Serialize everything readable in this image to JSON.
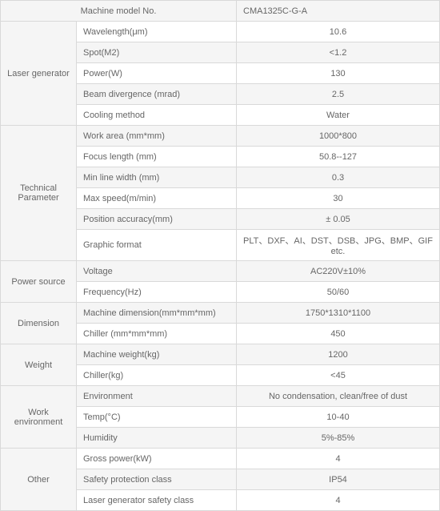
{
  "header": {
    "left": "Machine model No.",
    "right": "CMA1325C-G-A"
  },
  "groups": [
    {
      "name": "Laser generator",
      "rows": [
        {
          "param": "Wavelength(μm)",
          "value": "10.6"
        },
        {
          "param": "Spot(M2)",
          "value": "<1.2"
        },
        {
          "param": "Power(W)",
          "value": "130"
        },
        {
          "param": "Beam divergence (mrad)",
          "value": "2.5"
        },
        {
          "param": "Cooling method",
          "value": "Water"
        }
      ]
    },
    {
      "name": "Technical Parameter",
      "rows": [
        {
          "param": "Work area (mm*mm)",
          "value": "1000*800"
        },
        {
          "param": "Focus length (mm)",
          "value": "50.8--127"
        },
        {
          "param": "Min line width (mm)",
          "value": "0.3"
        },
        {
          "param": "Max speed(m/min)",
          "value": "30"
        },
        {
          "param": "Position accuracy(mm)",
          "value": "± 0.05"
        },
        {
          "param": "Graphic format",
          "value": "PLT、DXF、AI、DST、DSB、JPG、BMP、GIF etc."
        }
      ]
    },
    {
      "name": "Power source",
      "rows": [
        {
          "param": "Voltage",
          "value": "AC220V±10%"
        },
        {
          "param": "Frequency(Hz)",
          "value": "50/60"
        }
      ]
    },
    {
      "name": "Dimension",
      "rows": [
        {
          "param": "Machine dimension(mm*mm*mm)",
          "value": "1750*1310*1100"
        },
        {
          "param": "Chiller (mm*mm*mm)",
          "value": "450"
        }
      ]
    },
    {
      "name": "Weight",
      "rows": [
        {
          "param": "Machine weight(kg)",
          "value": "1200"
        },
        {
          "param": "Chiller(kg)",
          "value": "<45"
        }
      ]
    },
    {
      "name": "Work environment",
      "rows": [
        {
          "param": "Environment",
          "value": "No condensation, clean/free of dust"
        },
        {
          "param": "Temp(°C)",
          "value": "10-40"
        },
        {
          "param": "Humidity",
          "value": "5%-85%"
        }
      ]
    },
    {
      "name": "Other",
      "rows": [
        {
          "param": "Gross power(kW)",
          "value": "4"
        },
        {
          "param": "Safety protection class",
          "value": "IP54"
        },
        {
          "param": "Laser generator safety class",
          "value": "4"
        }
      ]
    }
  ],
  "colors": {
    "border": "#d9d9d9",
    "text": "#666666",
    "alt_bg": "#f5f5f5",
    "bg": "#ffffff"
  }
}
